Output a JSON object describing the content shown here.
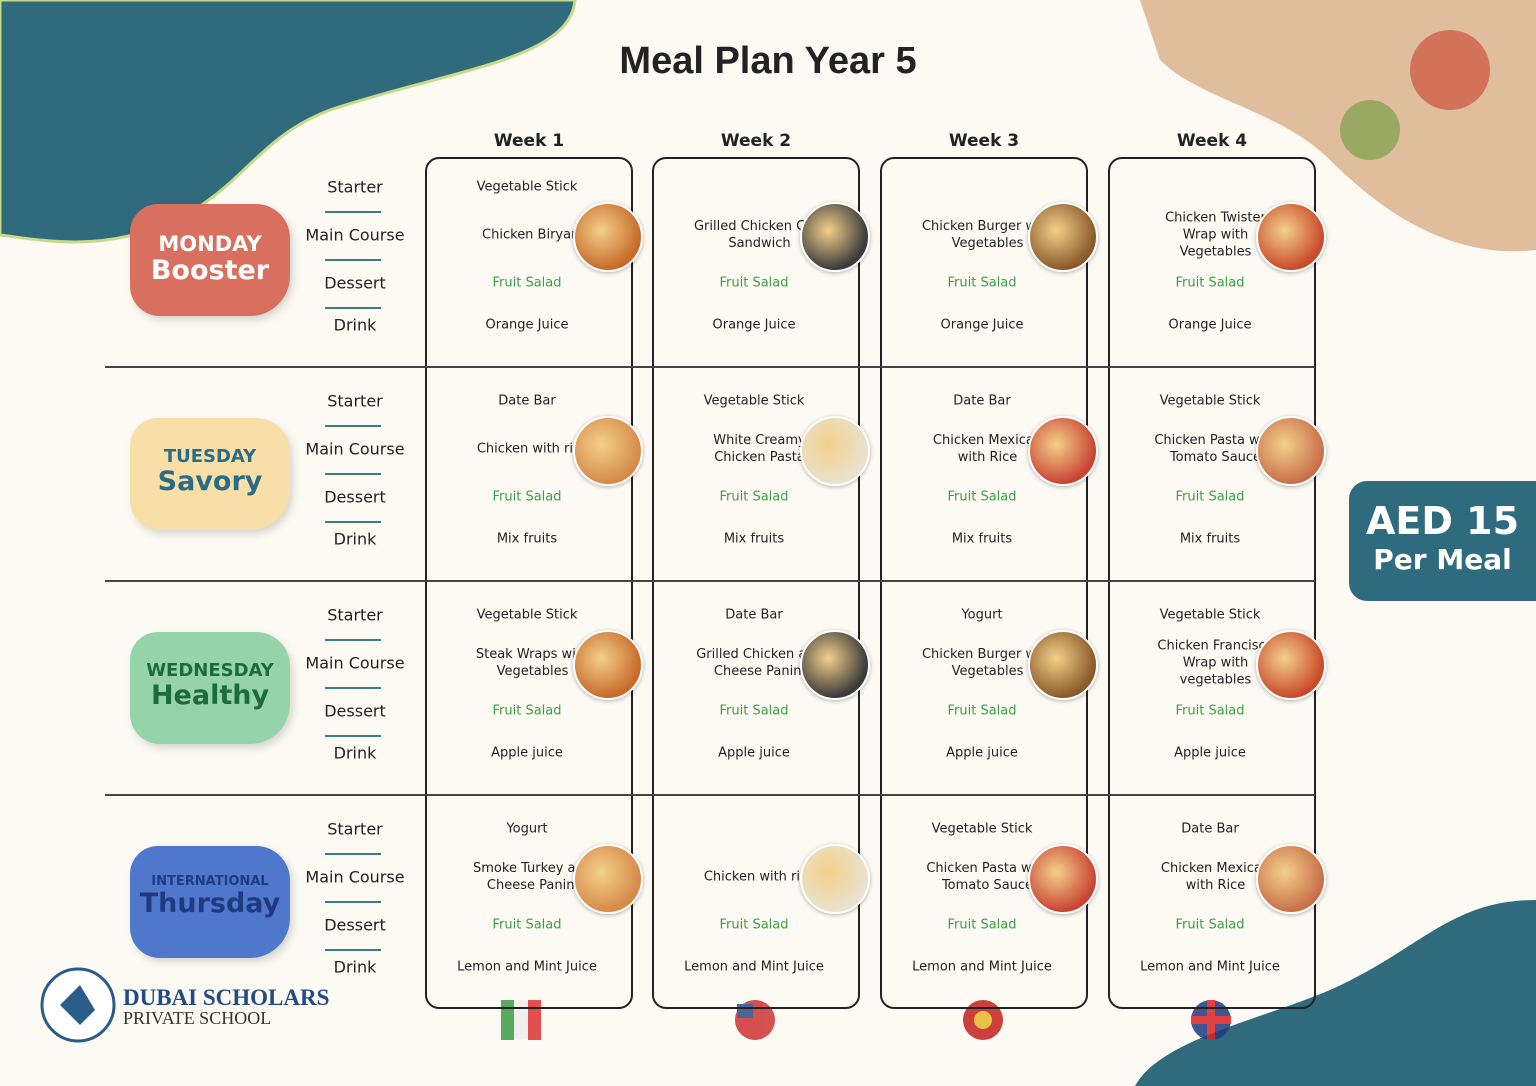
{
  "title": "Meal Plan Year 5",
  "weeks": [
    "Week 1",
    "Week 2",
    "Week 3",
    "Week 4"
  ],
  "courses": [
    "Starter",
    "Main Course",
    "Dessert",
    "Drink"
  ],
  "days": [
    {
      "label_top": "MONDAY",
      "label_bottom": "Booster",
      "cells": [
        {
          "starter": "Vegetable Stick",
          "main": "Chicken Biryani",
          "dessert": "Fruit Salad",
          "drink": "Orange Juice"
        },
        {
          "main": "Grilled Chicken Cold Sandwich",
          "dessert": "Fruit Salad",
          "drink": "Orange Juice"
        },
        {
          "main": "Chicken Burger with Vegetables",
          "dessert": "Fruit Salad",
          "drink": "Orange Juice"
        },
        {
          "main": "Chicken Twister Wrap with Vegetables",
          "dessert": "Fruit Salad",
          "drink": "Orange Juice"
        }
      ]
    },
    {
      "label_top": "TUESDAY",
      "label_bottom": "Savory",
      "cells": [
        {
          "starter": "Date Bar",
          "main": "Chicken with rice",
          "dessert": "Fruit Salad",
          "drink": "Mix fruits"
        },
        {
          "starter": "Vegetable Stick",
          "main": "White Creamy Chicken Pasta",
          "dessert": "Fruit Salad",
          "drink": "Mix fruits"
        },
        {
          "starter": "Date Bar",
          "main": "Chicken Mexican with Rice",
          "dessert": "Fruit Salad",
          "drink": "Mix fruits"
        },
        {
          "starter": "Vegetable Stick",
          "main": "Chicken Pasta with Tomato Sauce",
          "dessert": "Fruit Salad",
          "drink": "Mix fruits"
        }
      ]
    },
    {
      "label_top": "WEDNESDAY",
      "label_bottom": "Healthy",
      "cells": [
        {
          "starter": "Vegetable Stick",
          "main": "Steak Wraps with Vegetables",
          "dessert": "Fruit Salad",
          "drink": "Apple juice"
        },
        {
          "starter": "Date Bar",
          "main": "Grilled Chicken and Cheese Panini",
          "dessert": "Fruit Salad",
          "drink": "Apple juice"
        },
        {
          "starter": "Yogurt",
          "main": "Chicken Burger with Vegetables",
          "dessert": "Fruit Salad",
          "drink": "Apple juice"
        },
        {
          "starter": "Vegetable Stick",
          "main": "Chicken Francisco Wrap with vegetables",
          "dessert": "Fruit Salad",
          "drink": "Apple juice"
        }
      ]
    },
    {
      "label_top": "INTERNATIONAL",
      "label_bottom": "Thursday",
      "cells": [
        {
          "starter": "Yogurt",
          "main": "Smoke Turkey and Cheese Panini",
          "dessert": "Fruit Salad",
          "drink": "Lemon and Mint Juice"
        },
        {
          "main": "Chicken with rice",
          "dessert": "Fruit Salad",
          "drink": "Lemon and Mint Juice"
        },
        {
          "starter": "Vegetable Stick",
          "main": "Chicken Pasta with Tomato Sauce",
          "dessert": "Fruit Salad",
          "drink": "Lemon and Mint Juice"
        },
        {
          "starter": "Date Bar",
          "main": "Chicken Mexican with Rice",
          "dessert": "Fruit Salad",
          "drink": "Lemon and Mint Juice"
        }
      ]
    }
  ],
  "price": {
    "amount": "AED 15",
    "unit": "Per Meal"
  },
  "school": {
    "name": "DUBAI SCHOLARS",
    "subtitle": "PRIVATE SCHOOL"
  }
}
